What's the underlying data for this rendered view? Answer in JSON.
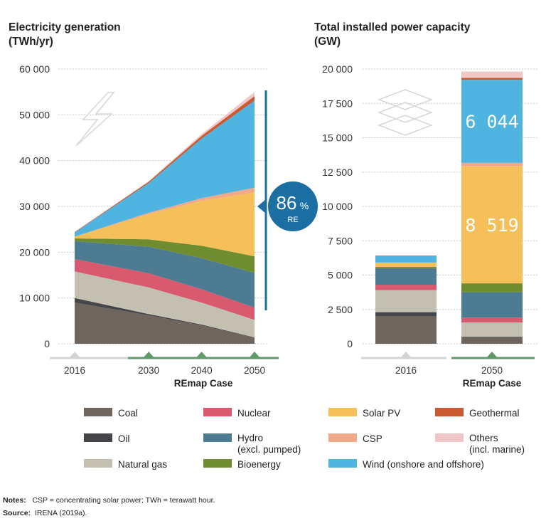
{
  "chart_data": [
    {
      "type": "area",
      "title_lines": [
        "Electricity generation",
        "(TWh/yr)"
      ],
      "x": [
        "2016",
        "2030",
        "2040",
        "2050"
      ],
      "case_label": "REmap Case",
      "ylim": [
        0,
        60000
      ],
      "y_ticks": [
        "0",
        "10 000",
        "20 000",
        "30 000",
        "40 000",
        "50 000",
        "60 000"
      ],
      "stacked": true,
      "series": [
        {
          "name": "Coal",
          "values": [
            9000,
            6200,
            4000,
            1300
          ]
        },
        {
          "name": "Oil",
          "values": [
            1000,
            300,
            200,
            100
          ]
        },
        {
          "name": "Natural gas",
          "values": [
            5800,
            5800,
            4800,
            3800
          ]
        },
        {
          "name": "Nuclear",
          "values": [
            2700,
            3100,
            2900,
            2700
          ]
        },
        {
          "name": "Hydro (excl. pumped)",
          "values": [
            3900,
            5800,
            6800,
            7600
          ]
        },
        {
          "name": "Bioenergy",
          "values": [
            600,
            1600,
            2700,
            3600
          ]
        },
        {
          "name": "Solar PV",
          "values": [
            400,
            5500,
            9800,
            14000
          ]
        },
        {
          "name": "CSP",
          "values": [
            0,
            300,
            600,
            1000
          ]
        },
        {
          "name": "Wind (onshore and offshore)",
          "values": [
            900,
            6500,
            13000,
            19000
          ]
        },
        {
          "name": "Geothermal",
          "values": [
            100,
            300,
            600,
            1000
          ]
        },
        {
          "name": "Others (incl. marine)",
          "values": [
            0,
            100,
            400,
            900
          ]
        }
      ],
      "callout": {
        "value": "86",
        "unit": "%",
        "label": "RE"
      }
    },
    {
      "type": "bar",
      "title_lines": [
        "Total installed power capacity",
        "(GW)"
      ],
      "categories": [
        "2016",
        "2050"
      ],
      "case_label": "REmap Case",
      "ylim": [
        0,
        20000
      ],
      "y_ticks": [
        "0",
        "2 500",
        "5 000",
        "7 500",
        "10 000",
        "12 500",
        "15 000",
        "17 500",
        "20 000"
      ],
      "stacked": true,
      "series": [
        {
          "name": "Coal",
          "values": [
            2000,
            450
          ]
        },
        {
          "name": "Oil",
          "values": [
            300,
            60
          ]
        },
        {
          "name": "Natural gas",
          "values": [
            1600,
            1040
          ]
        },
        {
          "name": "Nuclear",
          "values": [
            400,
            350
          ]
        },
        {
          "name": "Hydro (excl. pumped)",
          "values": [
            1200,
            1850
          ]
        },
        {
          "name": "Bioenergy",
          "values": [
            100,
            650
          ]
        },
        {
          "name": "Solar PV",
          "values": [
            300,
            8519
          ]
        },
        {
          "name": "CSP",
          "values": [
            20,
            250
          ]
        },
        {
          "name": "Wind (onshore and offshore)",
          "values": [
            480,
            6044
          ]
        },
        {
          "name": "Geothermal",
          "values": [
            20,
            150
          ]
        },
        {
          "name": "Others (incl. marine)",
          "values": [
            0,
            450
          ]
        }
      ],
      "bar_labels": {
        "Solar PV": "8 519",
        "Wind (onshore and offshore)": "6 044"
      }
    }
  ],
  "colors": {
    "Coal": "#6f655c",
    "Oil": "#444649",
    "Natural gas": "#c3c0b1",
    "Nuclear": "#d9596f",
    "Hydro (excl. pumped)": "#4d7b92",
    "Bioenergy": "#6f8c2e",
    "Solar PV": "#f5c05a",
    "CSP": "#f2a98a",
    "Wind (onshore and offshore)": "#4fb5e0",
    "Geothermal": "#c95a32",
    "Others (incl. marine)": "#f0c6c6",
    "accent": "#1c6fa3",
    "timeline_green": "#5f9a6a",
    "timeline_grey": "#d4d4d4"
  },
  "legend": [
    [
      {
        "label": "Coal",
        "key": "Coal"
      },
      {
        "label": "Nuclear",
        "key": "Nuclear"
      },
      {
        "label": "Solar PV",
        "key": "Solar PV"
      },
      {
        "label": "Geothermal",
        "key": "Geothermal"
      }
    ],
    [
      {
        "label": "Oil",
        "key": "Oil"
      },
      {
        "label": "Hydro",
        "label2": "(excl. pumped)",
        "key": "Hydro (excl. pumped)"
      },
      {
        "label": "CSP",
        "key": "CSP"
      },
      {
        "label": "Others",
        "label2": "(incl. marine)",
        "key": "Others (incl. marine)"
      }
    ],
    [
      {
        "label": "Natural gas",
        "key": "Natural gas"
      },
      {
        "label": "Bioenergy",
        "key": "Bioenergy"
      },
      {
        "label": "Wind (onshore and offshore)",
        "key": "Wind (onshore and offshore)"
      }
    ]
  ],
  "notes": {
    "label": "Notes:",
    "text": "CSP = concentrating solar power; TWh = terawatt hour."
  },
  "source": {
    "label": "Source:",
    "text": "IRENA (2019a)."
  }
}
